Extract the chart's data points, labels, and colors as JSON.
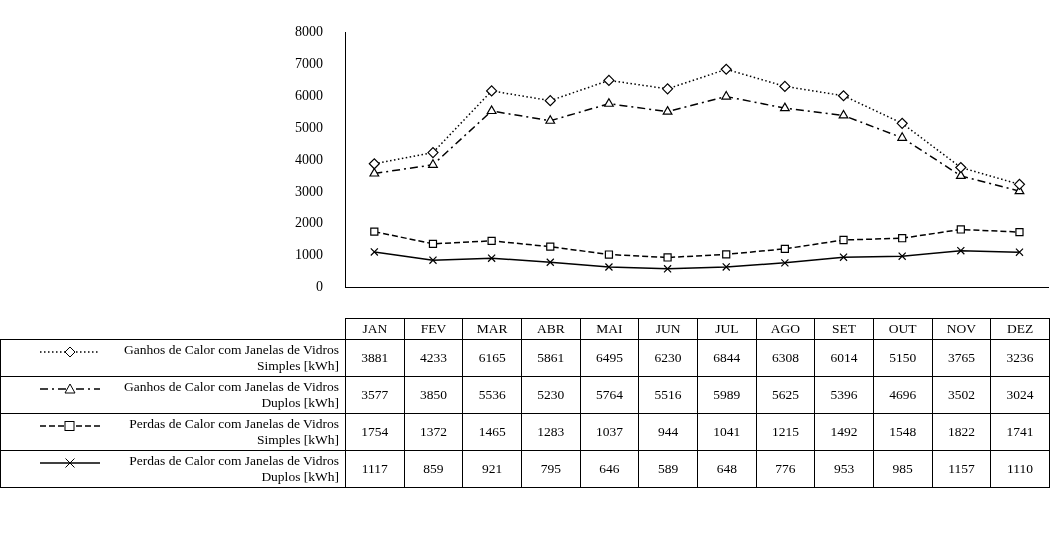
{
  "chart_data": {
    "type": "line",
    "categories": [
      "JAN",
      "FEV",
      "MAR",
      "ABR",
      "MAI",
      "JUN",
      "JUL",
      "AGO",
      "SET",
      "OUT",
      "NOV",
      "DEZ"
    ],
    "ylim": [
      0,
      8000
    ],
    "yticks": [
      0,
      1000,
      2000,
      3000,
      4000,
      5000,
      6000,
      7000,
      8000
    ],
    "grid": false,
    "legend": "bottom",
    "data_labels": true,
    "series": [
      {
        "name": "Ganhos de Calor com Janelas de Vidros Simples [kWh]",
        "color": "#000000",
        "marker": "diamond",
        "line_style": "dotted",
        "values": [
          3881,
          4233,
          6165,
          5861,
          6495,
          6230,
          6844,
          6308,
          6014,
          5150,
          3765,
          3236
        ]
      },
      {
        "name": "Ganhos de Calor com Janelas de Vidros Duplos [kWh]",
        "color": "#000000",
        "marker": "triangle",
        "line_style": "dashdot",
        "values": [
          3577,
          3850,
          5536,
          5230,
          5764,
          5516,
          5989,
          5625,
          5396,
          4696,
          3502,
          3024
        ]
      },
      {
        "name": "Perdas de Calor com Janelas de Vidros Simples [kWh]",
        "color": "#000000",
        "marker": "square",
        "line_style": "dashed",
        "values": [
          1754,
          1372,
          1465,
          1283,
          1037,
          944,
          1041,
          1215,
          1492,
          1548,
          1822,
          1741
        ]
      },
      {
        "name": "Perdas de Calor com Janelas de Vidros Duplos [kWh]",
        "color": "#000000",
        "marker": "cross",
        "line_style": "solid",
        "values": [
          1117,
          859,
          921,
          795,
          646,
          589,
          648,
          776,
          953,
          985,
          1157,
          1110
        ]
      }
    ]
  }
}
